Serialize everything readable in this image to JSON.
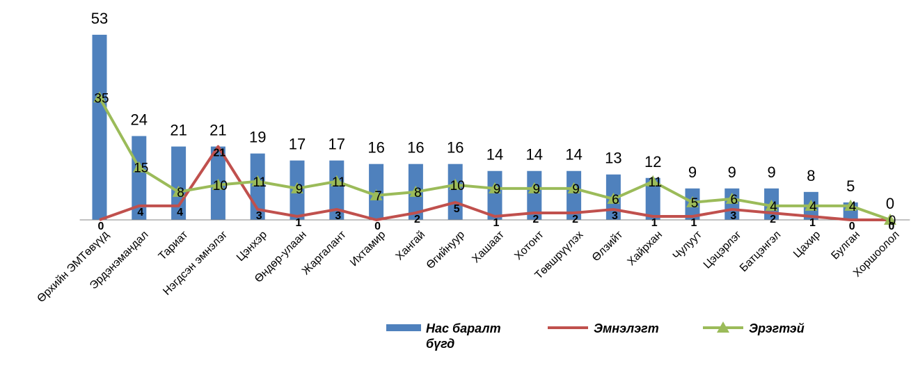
{
  "chart_data": {
    "type": "bar",
    "title": "",
    "xlabel": "",
    "ylabel": "",
    "ylim": [
      0,
      56
    ],
    "grid": false,
    "legend_position": "bottom",
    "categories": [
      "Өрхийн ЭМТөвүүд",
      "Эрдэнэмандал",
      "Тариат",
      "Нэгдсэн эмнэлэг",
      "Цэнхэр",
      "Өндөр-улаан",
      "Жаргалант",
      "Ихтамир",
      "Хангай",
      "Өгийнуур",
      "Хашаат",
      "Хотонт",
      "Төвшрүүлэх",
      "Өлзийт",
      "Хайрхан",
      "Чулуут",
      "Цэцэрлэг",
      "Батцэнгэл",
      "Цахир",
      "Булган",
      "Хоршоолол"
    ],
    "series": [
      {
        "name": "Нас баралт бүгд",
        "name_lines": [
          "Нас баралт",
          "бүгд"
        ],
        "type": "bar",
        "color": "#4f81bd",
        "values": [
          53,
          24,
          21,
          21,
          19,
          17,
          17,
          16,
          16,
          16,
          14,
          14,
          14,
          13,
          12,
          9,
          9,
          9,
          8,
          5,
          0
        ]
      },
      {
        "name": "Эмнэлэгт",
        "type": "line",
        "color": "#c0504d",
        "values": [
          0,
          4,
          4,
          21,
          3,
          1,
          3,
          0,
          2,
          5,
          1,
          2,
          2,
          3,
          1,
          1,
          3,
          2,
          1,
          0,
          0
        ]
      },
      {
        "name": "Эрэгтэй",
        "type": "line",
        "marker": "triangle",
        "color": "#9bbb59",
        "values": [
          35,
          15,
          8,
          10,
          11,
          9,
          11,
          7,
          8,
          10,
          9,
          9,
          9,
          6,
          11,
          5,
          6,
          4,
          4,
          4,
          0
        ]
      }
    ]
  }
}
